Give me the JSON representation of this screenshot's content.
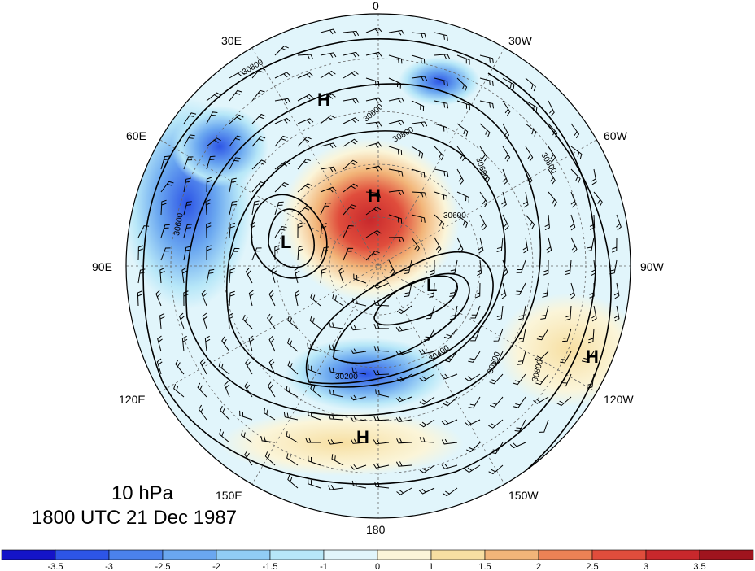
{
  "map": {
    "projection": "north-polar-stereographic",
    "longitude_labels": [
      "0",
      "30W",
      "60W",
      "90W",
      "120W",
      "150W",
      "180",
      "150E",
      "120E",
      "90E",
      "60E",
      "30E"
    ],
    "contour_labels": [
      "30800",
      "30600",
      "30600",
      "30800",
      "30600",
      "30600",
      "30400",
      "30600",
      "30800",
      "30200",
      "30800"
    ],
    "pressure_system_labels": [
      "H",
      "H",
      "L",
      "L",
      "H",
      "H"
    ]
  },
  "title": {
    "level": "10 hPa",
    "time": "1800 UTC 21 Dec 1987"
  },
  "colorbar": {
    "tick_labels": [
      "-3.5",
      "-3",
      "-2.5",
      "-2",
      "-1.5",
      "-1",
      "0",
      "1",
      "1.5",
      "2",
      "2.5",
      "3",
      "3.5"
    ],
    "colors": [
      "#1414c8",
      "#2d55e6",
      "#4b82ec",
      "#6aa7f0",
      "#91cdf5",
      "#b7e7f8",
      "#e1f5fb",
      "#fbf5d9",
      "#f7dfa2",
      "#f2b579",
      "#ec8255",
      "#e04d3c",
      "#c8282c",
      "#a0141e"
    ]
  }
}
